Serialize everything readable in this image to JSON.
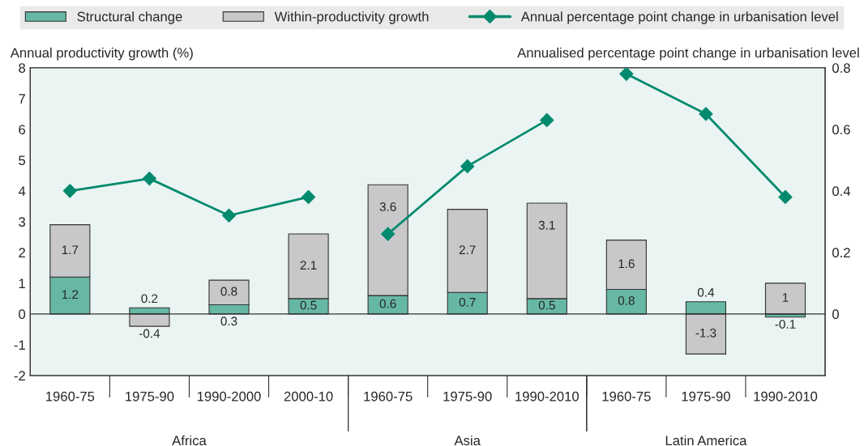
{
  "chart_data": {
    "type": "bar",
    "stacked": true,
    "ylabel": "Annual productivity growth (%)",
    "y2label": "Annualised percentage point change in urbanisation level",
    "categories": [
      "1960-75",
      "1975-90",
      "1990-2000",
      "2000-10",
      "1960-75",
      "1975-90",
      "1990-2010",
      "1960-75",
      "1975-90",
      "1990-2010"
    ],
    "series": [
      {
        "name": "Structural change",
        "color": "#66b8a4",
        "values": [
          1.2,
          0.2,
          0.3,
          0.5,
          0.6,
          0.7,
          0.5,
          0.8,
          0.4,
          -0.1
        ],
        "value_labels": [
          "1.2",
          "0.2",
          "0.3",
          "0.5",
          "0.6",
          "0.7",
          "0.5",
          "0.8",
          "0.4",
          "-0.1"
        ]
      },
      {
        "name": "Within-productivity growth",
        "color": "#c8c8ca",
        "values": [
          1.7,
          -0.4,
          0.8,
          2.1,
          3.6,
          2.7,
          3.1,
          1.6,
          -1.3,
          1
        ],
        "value_labels": [
          "1.7",
          "-0.4",
          "0.8",
          "2.1",
          "3.6",
          "2.7",
          "3.1",
          "1.6",
          "-1.3",
          "1"
        ]
      },
      {
        "name": "Annual percentage point change in urbanisation level",
        "type": "line",
        "axis": "y2",
        "color": "#008a6e",
        "values": [
          0.4,
          0.44,
          0.32,
          0.38,
          null,
          null,
          null,
          null,
          null,
          null
        ]
      },
      {
        "type": "line",
        "axis": "y2",
        "color": "#008a6e",
        "values": [
          null,
          null,
          null,
          null,
          0.26,
          0.48,
          0.63,
          null,
          null,
          null
        ]
      },
      {
        "type": "line",
        "axis": "y2",
        "color": "#008a6e",
        "values": [
          null,
          null,
          null,
          null,
          null,
          null,
          null,
          0.78,
          0.65,
          0.38
        ]
      }
    ],
    "annotations": [
      "Africa",
      "Asia",
      "Latin America"
    ],
    "ylim": [
      -2,
      8
    ],
    "yticks": [
      -2,
      -1,
      0,
      1,
      2,
      3,
      4,
      5,
      6,
      7,
      8
    ],
    "y2lim": [
      -0.2,
      0.8
    ],
    "y2ticks": [
      0,
      0.2,
      0.4,
      0.6,
      0.8
    ],
    "ref_lines": [
      {
        "axis": "y",
        "value": 0,
        "color": "#333333"
      }
    ],
    "marker": "diamond",
    "line_style": "solid",
    "legend": "top",
    "grid": false
  }
}
